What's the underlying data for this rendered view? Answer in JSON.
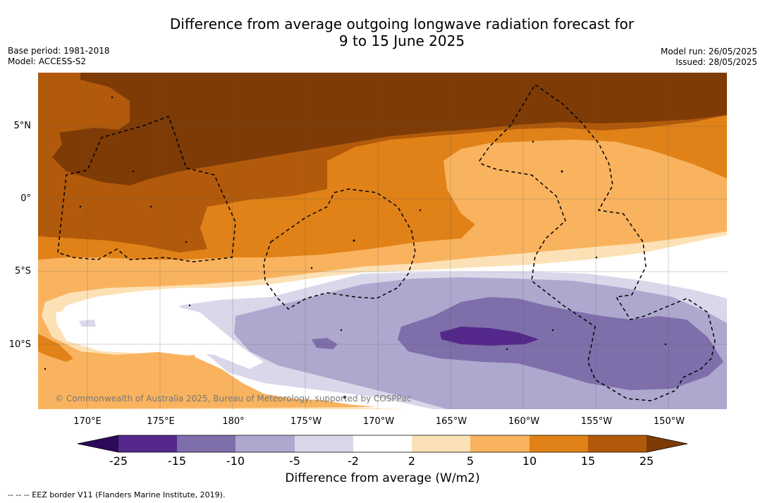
{
  "title": {
    "line1": "Difference from average outgoing longwave radiation forecast for",
    "line2": "9 to 15 June 2025"
  },
  "meta": {
    "base_period": "Base period: 1981-2018",
    "model": "Model: ACCESS-S2",
    "model_run": "Model run: 26/05/2025",
    "issued": "Issued: 28/05/2025"
  },
  "map": {
    "lat_labels": [
      "5°N",
      "0°",
      "5°S",
      "10°S"
    ],
    "lon_labels": [
      "170°E",
      "175°E",
      "180°",
      "175°W",
      "170°W",
      "165°W",
      "160°W",
      "155°W",
      "150°W"
    ],
    "copyright": "© Commonwealth of Australia 2025, Bureau of Meteorology, supported by COSPPac"
  },
  "colorbar": {
    "ticks": [
      "-25",
      "-15",
      "-10",
      "-5",
      "-2",
      "2",
      "5",
      "10",
      "15",
      "25"
    ],
    "colors": {
      "below": "#2d0a5a",
      "-25to-15": "#54288a",
      "-15to-10": "#7e6ea9",
      "-10to-5": "#aea8cf",
      "-5to-2": "#d9d8ea",
      "-2to2": "#ffffff",
      "2to5": "#fde1b6",
      "5to10": "#f9b35f",
      "10to15": "#e08218",
      "15to25": "#b25a0b",
      "above": "#7e3b06"
    },
    "label": "Difference from average (W/m2)"
  },
  "footnote": "--  --  -- EEZ border V11 (Flanders Marine Institute, 2019)."
}
